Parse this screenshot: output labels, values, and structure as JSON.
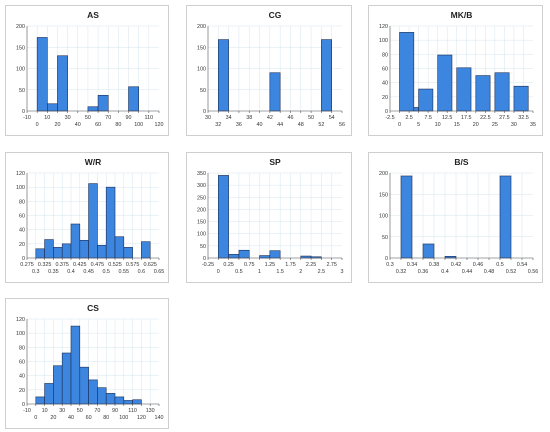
{
  "chart_data": [
    {
      "type": "bar",
      "title": "AS",
      "xlim": [
        -10,
        120
      ],
      "ylim": [
        0,
        200
      ],
      "yticks": [
        0,
        50,
        100,
        150,
        200
      ],
      "xticks_top": [
        "-10",
        "10",
        "30",
        "50",
        "70",
        "90",
        "110"
      ],
      "xticks_bottom": [
        "0",
        "20",
        "40",
        "60",
        "80",
        "100",
        "120"
      ],
      "bars": [
        {
          "x0": 0,
          "x1": 10,
          "y": 173
        },
        {
          "x0": 10,
          "x1": 20,
          "y": 17
        },
        {
          "x0": 20,
          "x1": 30,
          "y": 130
        },
        {
          "x0": 50,
          "x1": 60,
          "y": 10
        },
        {
          "x0": 60,
          "x1": 70,
          "y": 37
        },
        {
          "x0": 90,
          "x1": 100,
          "y": 57
        }
      ]
    },
    {
      "type": "bar",
      "title": "CG",
      "xlim": [
        30,
        56
      ],
      "ylim": [
        0,
        200
      ],
      "yticks": [
        0,
        50,
        100,
        150,
        200
      ],
      "xticks_top": [
        "30",
        "34",
        "38",
        "42",
        "46",
        "50",
        "54"
      ],
      "xticks_bottom": [
        "32",
        "36",
        "40",
        "44",
        "48",
        "52",
        "56"
      ],
      "bars": [
        {
          "x0": 32,
          "x1": 34,
          "y": 168
        },
        {
          "x0": 42,
          "x1": 44,
          "y": 90
        },
        {
          "x0": 52,
          "x1": 54,
          "y": 168
        }
      ]
    },
    {
      "type": "bar",
      "title": "MK/B",
      "xlim": [
        -2.5,
        35
      ],
      "ylim": [
        0,
        120
      ],
      "yticks": [
        0,
        20,
        40,
        60,
        80,
        100,
        120
      ],
      "xticks_top": [
        "-2.5",
        "2.5",
        "7.5",
        "12.5",
        "17.5",
        "22.5",
        "27.5",
        "32.5"
      ],
      "xticks_bottom": [
        "0",
        "5",
        "10",
        "15",
        "20",
        "25",
        "30",
        "35"
      ],
      "bars": [
        {
          "x0": 0,
          "x1": 3.75,
          "y": 111
        },
        {
          "x0": 3.75,
          "x1": 5,
          "y": 5
        },
        {
          "x0": 5,
          "x1": 8.75,
          "y": 31
        },
        {
          "x0": 10,
          "x1": 13.75,
          "y": 79
        },
        {
          "x0": 15,
          "x1": 18.75,
          "y": 61
        },
        {
          "x0": 20,
          "x1": 23.75,
          "y": 50
        },
        {
          "x0": 25,
          "x1": 28.75,
          "y": 54
        },
        {
          "x0": 30,
          "x1": 33.75,
          "y": 35
        }
      ]
    },
    {
      "type": "bar",
      "title": "W/R",
      "xlim": [
        0.275,
        0.65
      ],
      "ylim": [
        0,
        120
      ],
      "yticks": [
        0,
        20,
        40,
        60,
        80,
        100,
        120
      ],
      "xticks_top": [
        "0.275",
        "0.325",
        "0.375",
        "0.425",
        "0.475",
        "0.525",
        "0.575",
        "0.625"
      ],
      "xticks_bottom": [
        "0.3",
        "0.35",
        "0.4",
        "0.45",
        "0.5",
        "0.55",
        "0.6",
        "0.65"
      ],
      "bars": [
        {
          "x0": 0.3,
          "x1": 0.325,
          "y": 13
        },
        {
          "x0": 0.325,
          "x1": 0.35,
          "y": 26
        },
        {
          "x0": 0.35,
          "x1": 0.375,
          "y": 15
        },
        {
          "x0": 0.375,
          "x1": 0.4,
          "y": 20
        },
        {
          "x0": 0.4,
          "x1": 0.425,
          "y": 48
        },
        {
          "x0": 0.425,
          "x1": 0.45,
          "y": 25
        },
        {
          "x0": 0.45,
          "x1": 0.475,
          "y": 105
        },
        {
          "x0": 0.475,
          "x1": 0.5,
          "y": 18
        },
        {
          "x0": 0.5,
          "x1": 0.525,
          "y": 100
        },
        {
          "x0": 0.525,
          "x1": 0.55,
          "y": 30
        },
        {
          "x0": 0.55,
          "x1": 0.575,
          "y": 15
        },
        {
          "x0": 0.6,
          "x1": 0.625,
          "y": 23
        }
      ]
    },
    {
      "type": "bar",
      "title": "SP",
      "xlim": [
        -0.25,
        3
      ],
      "ylim": [
        0,
        350
      ],
      "yticks": [
        0,
        50,
        100,
        150,
        200,
        250,
        300,
        350
      ],
      "xticks_top": [
        "-0.25",
        "0.25",
        "0.75",
        "1.25",
        "1.75",
        "2.25",
        "2.75"
      ],
      "xticks_bottom": [
        "0",
        "0.5",
        "1",
        "1.5",
        "2",
        "2.5",
        "3"
      ],
      "bars": [
        {
          "x0": 0,
          "x1": 0.25,
          "y": 340
        },
        {
          "x0": 0.25,
          "x1": 0.5,
          "y": 15
        },
        {
          "x0": 0.5,
          "x1": 0.75,
          "y": 32
        },
        {
          "x0": 1.0,
          "x1": 1.25,
          "y": 10
        },
        {
          "x0": 1.25,
          "x1": 1.5,
          "y": 30
        },
        {
          "x0": 2.0,
          "x1": 2.25,
          "y": 8
        },
        {
          "x0": 2.25,
          "x1": 2.5,
          "y": 5
        }
      ]
    },
    {
      "type": "bar",
      "title": "B/S",
      "xlim": [
        0.3,
        0.56
      ],
      "ylim": [
        0,
        200
      ],
      "yticks": [
        0,
        50,
        100,
        150,
        200
      ],
      "xticks_top": [
        "0.3",
        "0.34",
        "0.38",
        "0.42",
        "0.46",
        "0.5",
        "0.54"
      ],
      "xticks_bottom": [
        "0.32",
        "0.36",
        "0.4",
        "0.44",
        "0.48",
        "0.52",
        "0.56"
      ],
      "bars": [
        {
          "x0": 0.32,
          "x1": 0.34,
          "y": 193
        },
        {
          "x0": 0.36,
          "x1": 0.38,
          "y": 33
        },
        {
          "x0": 0.4,
          "x1": 0.42,
          "y": 4
        },
        {
          "x0": 0.5,
          "x1": 0.52,
          "y": 193
        }
      ]
    },
    {
      "type": "bar",
      "title": "CS",
      "xlim": [
        -10,
        140
      ],
      "ylim": [
        0,
        120
      ],
      "yticks": [
        0,
        20,
        40,
        60,
        80,
        100,
        120
      ],
      "xticks_top": [
        "-10",
        "10",
        "30",
        "50",
        "70",
        "90",
        "110",
        "130"
      ],
      "xticks_bottom": [
        "0",
        "20",
        "40",
        "60",
        "80",
        "100",
        "120",
        "140"
      ],
      "bars": [
        {
          "x0": 0,
          "x1": 10,
          "y": 10
        },
        {
          "x0": 10,
          "x1": 20,
          "y": 29
        },
        {
          "x0": 20,
          "x1": 30,
          "y": 54
        },
        {
          "x0": 30,
          "x1": 40,
          "y": 72
        },
        {
          "x0": 40,
          "x1": 50,
          "y": 110
        },
        {
          "x0": 50,
          "x1": 60,
          "y": 52
        },
        {
          "x0": 60,
          "x1": 70,
          "y": 34
        },
        {
          "x0": 70,
          "x1": 80,
          "y": 23
        },
        {
          "x0": 80,
          "x1": 90,
          "y": 15
        },
        {
          "x0": 90,
          "x1": 100,
          "y": 10
        },
        {
          "x0": 100,
          "x1": 110,
          "y": 5
        },
        {
          "x0": 110,
          "x1": 120,
          "y": 6
        }
      ]
    }
  ]
}
